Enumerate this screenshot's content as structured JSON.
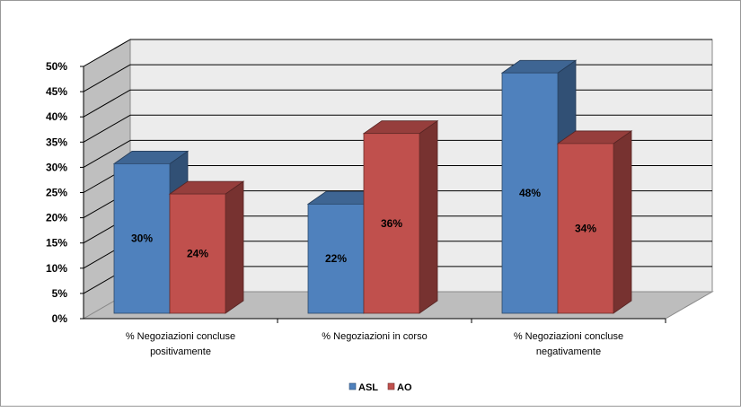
{
  "chart_data": {
    "type": "bar",
    "title": "",
    "xlabel": "",
    "ylabel": "",
    "categories": [
      [
        "% Negoziazioni concluse",
        "positivamente"
      ],
      [
        "% Negoziazioni in corso"
      ],
      [
        "% Negoziazioni concluse",
        "negativamente"
      ]
    ],
    "series": [
      {
        "name": "ASL",
        "values": [
          30,
          22,
          48
        ],
        "labels": [
          "30%",
          "22%",
          "48%"
        ]
      },
      {
        "name": "AO",
        "values": [
          24,
          36,
          34
        ],
        "labels": [
          "24%",
          "36%",
          "34%"
        ]
      }
    ],
    "ylim": [
      0,
      50
    ],
    "yticks": [
      "0%",
      "5%",
      "10%",
      "15%",
      "20%",
      "25%",
      "30%",
      "35%",
      "40%",
      "45%",
      "50%"
    ],
    "grid": true,
    "legend_position": "bottom",
    "colors": {
      "ASL": "#4f81bd",
      "AO": "#c0504d"
    }
  }
}
